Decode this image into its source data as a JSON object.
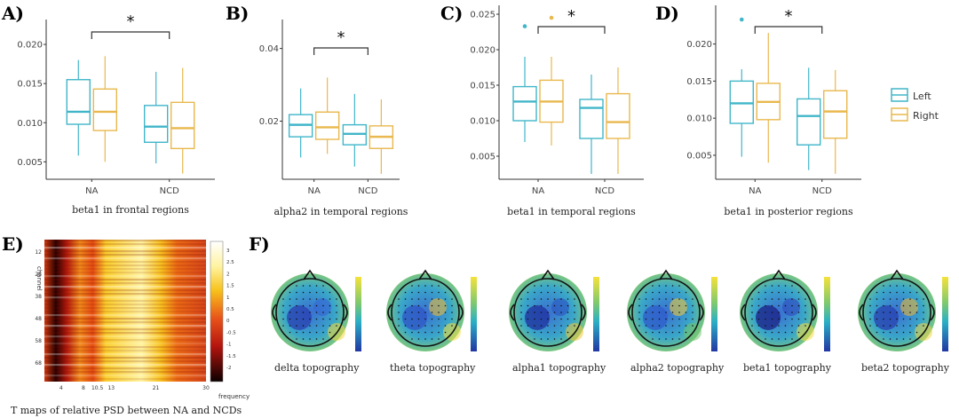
{
  "colors": {
    "left": "#41b6c9",
    "right": "#e9b84e",
    "axis": "#333333",
    "sig": "#333333"
  },
  "legend": {
    "entries": [
      "Left",
      "Right"
    ]
  },
  "chart_data": [
    {
      "panel": "A)",
      "type": "boxplot",
      "title": "",
      "xlabel": "beta1 in frontal regions",
      "ylabel": "",
      "categories": [
        "NA",
        "NCD"
      ],
      "ylim": [
        0.003,
        0.0225
      ],
      "yticks": [
        0.005,
        0.01,
        0.015,
        0.02
      ],
      "ytick_labels": [
        "0.005",
        "0.010",
        "0.015",
        "0.020"
      ],
      "series": [
        {
          "name": "Left",
          "boxes": [
            {
              "min": 0.0058,
              "q1": 0.0098,
              "median": 0.0114,
              "q3": 0.0155,
              "max": 0.018
            },
            {
              "min": 0.0048,
              "q1": 0.0075,
              "median": 0.0095,
              "q3": 0.0122,
              "max": 0.0165
            }
          ]
        },
        {
          "name": "Right",
          "boxes": [
            {
              "min": 0.005,
              "q1": 0.009,
              "median": 0.0114,
              "q3": 0.0143,
              "max": 0.0185
            },
            {
              "min": 0.0035,
              "q1": 0.0067,
              "median": 0.0093,
              "q3": 0.0126,
              "max": 0.017
            }
          ]
        }
      ],
      "outliers": [],
      "significance": "*"
    },
    {
      "panel": "B)",
      "type": "boxplot",
      "title": "",
      "xlabel": "alpha2 in temporal regions",
      "ylabel": "",
      "categories": [
        "NA",
        "NCD"
      ],
      "ylim": [
        0.0045,
        0.0465
      ],
      "yticks": [
        0.02,
        0.04
      ],
      "ytick_labels": [
        "0.02",
        "0.04"
      ],
      "series": [
        {
          "name": "Left",
          "boxes": [
            {
              "min": 0.01,
              "q1": 0.0157,
              "median": 0.019,
              "q3": 0.0218,
              "max": 0.029
            },
            {
              "min": 0.0075,
              "q1": 0.0135,
              "median": 0.0165,
              "q3": 0.019,
              "max": 0.0275
            }
          ]
        },
        {
          "name": "Right",
          "boxes": [
            {
              "min": 0.011,
              "q1": 0.015,
              "median": 0.0183,
              "q3": 0.0225,
              "max": 0.032
            },
            {
              "min": 0.0055,
              "q1": 0.0125,
              "median": 0.0157,
              "q3": 0.0187,
              "max": 0.026
            }
          ]
        }
      ],
      "outliers": [],
      "significance": "*"
    },
    {
      "panel": "C)",
      "type": "boxplot",
      "title": "",
      "xlabel": "beta1 in temporal regions",
      "ylabel": "",
      "categories": [
        "NA",
        "NCD"
      ],
      "ylim": [
        0.002,
        0.0255
      ],
      "yticks": [
        0.005,
        0.01,
        0.015,
        0.02,
        0.025
      ],
      "ytick_labels": [
        "0.005",
        "0.010",
        "0.015",
        "0.020",
        "0.025"
      ],
      "series": [
        {
          "name": "Left",
          "boxes": [
            {
              "min": 0.007,
              "q1": 0.01,
              "median": 0.0127,
              "q3": 0.0148,
              "max": 0.019
            },
            {
              "min": 0.0025,
              "q1": 0.0075,
              "median": 0.0118,
              "q3": 0.013,
              "max": 0.0165
            }
          ]
        },
        {
          "name": "Right",
          "boxes": [
            {
              "min": 0.0065,
              "q1": 0.0098,
              "median": 0.0127,
              "q3": 0.0157,
              "max": 0.019
            },
            {
              "min": 0.0025,
              "q1": 0.0075,
              "median": 0.0098,
              "q3": 0.0138,
              "max": 0.0175
            }
          ]
        }
      ],
      "outliers": [
        {
          "series": "Left",
          "category": "NA",
          "value": 0.0233
        },
        {
          "series": "Right",
          "category": "NA",
          "value": 0.0245
        }
      ],
      "significance": "*"
    },
    {
      "panel": "D)",
      "type": "boxplot",
      "title": "",
      "xlabel": "beta1 in posterior regions",
      "ylabel": "",
      "categories": [
        "NA",
        "NCD"
      ],
      "ylim": [
        0.002,
        0.0245
      ],
      "yticks": [
        0.005,
        0.01,
        0.015,
        0.02
      ],
      "ytick_labels": [
        "0.005",
        "0.010",
        "0.015",
        "0.020"
      ],
      "series": [
        {
          "name": "Left",
          "boxes": [
            {
              "min": 0.0048,
              "q1": 0.0093,
              "median": 0.012,
              "q3": 0.015,
              "max": 0.0166
            },
            {
              "min": 0.003,
              "q1": 0.0064,
              "median": 0.0103,
              "q3": 0.0126,
              "max": 0.0168
            }
          ]
        },
        {
          "name": "Right",
          "boxes": [
            {
              "min": 0.004,
              "q1": 0.0098,
              "median": 0.0122,
              "q3": 0.0147,
              "max": 0.0215
            },
            {
              "min": 0.0025,
              "q1": 0.0073,
              "median": 0.0109,
              "q3": 0.0137,
              "max": 0.0165
            }
          ]
        }
      ],
      "outliers": [
        {
          "series": "Left",
          "category": "NA",
          "value": 0.0233
        }
      ],
      "significance": "*"
    },
    {
      "panel": "E)",
      "type": "heatmap",
      "caption": "T maps of relative PSD between NA and NCDs",
      "ylabel": "channel",
      "xlabel": "frequency",
      "yticks": [
        "12",
        "28",
        "38",
        "48",
        "58",
        "68"
      ],
      "xticks": [
        "4",
        "8",
        "10.5",
        "13",
        "21",
        "30"
      ],
      "colorbar_ticks": [
        "3",
        "2.5",
        "2",
        "1.5",
        "1",
        "0.5",
        "0",
        "-0.5",
        "-1",
        "-1.5",
        "-2"
      ],
      "values_summary": "strong negative T (dark) below 8 Hz, positive T (yellow-white) from 13 to 21 Hz"
    },
    {
      "panel": "F)",
      "type": "topography",
      "maps": [
        "delta  topography",
        "theta topography",
        "alpha1  topography",
        "alpha2 topography",
        "beta1  topography",
        "beta2 topography"
      ]
    }
  ]
}
